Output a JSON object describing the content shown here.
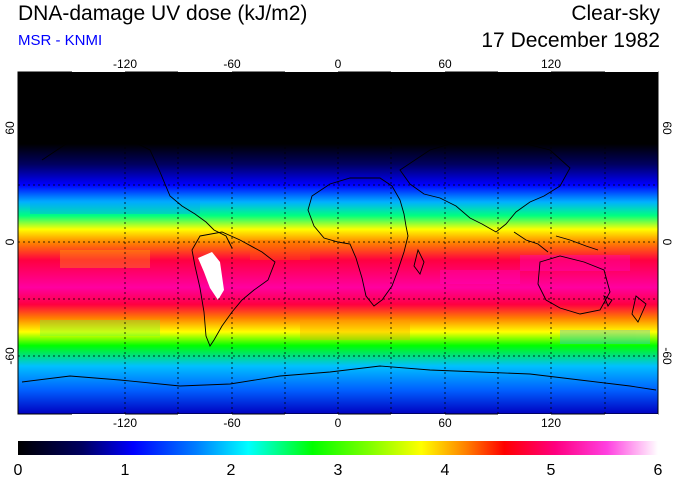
{
  "header": {
    "title": "DNA-damage UV dose (kJ/m2)",
    "subtitle": "MSR - KNMI",
    "condition": "Clear-sky",
    "date": "17 December 1982"
  },
  "map": {
    "projection": "equirectangular",
    "lon_ticks": [
      "-120",
      "-60",
      "0",
      "60",
      "120"
    ],
    "lat_ticks": [
      "60",
      "0",
      "-60"
    ]
  },
  "colorbar": {
    "min": 0,
    "max": 6,
    "labels": [
      "0",
      "1",
      "2",
      "3",
      "4",
      "5",
      "6"
    ]
  },
  "colors": {
    "subtitle": "#0000ff"
  }
}
